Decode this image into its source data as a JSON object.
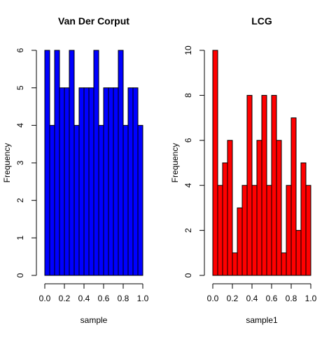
{
  "chart_data": [
    {
      "type": "bar",
      "title": "Van Der Corput",
      "xlabel": "sample",
      "ylabel": "Frequency",
      "xlim": [
        0,
        1
      ],
      "ylim": [
        0,
        6
      ],
      "x_ticks": [
        "0.0",
        "0.2",
        "0.4",
        "0.6",
        "0.8",
        "1.0"
      ],
      "y_ticks": [
        "0",
        "1",
        "2",
        "3",
        "4",
        "5",
        "6"
      ],
      "bin_width": 0.05,
      "bin_starts": [
        0.0,
        0.05,
        0.1,
        0.15,
        0.2,
        0.25,
        0.3,
        0.35,
        0.4,
        0.45,
        0.5,
        0.55,
        0.6,
        0.65,
        0.7,
        0.75,
        0.8,
        0.85,
        0.9,
        0.95
      ],
      "values": [
        6,
        4,
        6,
        5,
        5,
        6,
        4,
        5,
        5,
        5,
        6,
        4,
        5,
        5,
        5,
        6,
        4,
        5,
        5,
        4
      ],
      "bar_color": "#0000ff",
      "grid": false
    },
    {
      "type": "bar",
      "title": "LCG",
      "xlabel": "sample1",
      "ylabel": "Frequency",
      "xlim": [
        0,
        1
      ],
      "ylim": [
        0,
        10
      ],
      "x_ticks": [
        "0.0",
        "0.2",
        "0.4",
        "0.6",
        "0.8",
        "1.0"
      ],
      "y_ticks": [
        "0",
        "2",
        "4",
        "6",
        "8",
        "10"
      ],
      "bin_width": 0.05,
      "bin_starts": [
        0.0,
        0.05,
        0.1,
        0.15,
        0.2,
        0.25,
        0.3,
        0.35,
        0.4,
        0.45,
        0.5,
        0.55,
        0.6,
        0.65,
        0.7,
        0.75,
        0.8,
        0.85,
        0.9,
        0.95
      ],
      "values": [
        10,
        4,
        5,
        6,
        1,
        3,
        4,
        8,
        4,
        6,
        8,
        4,
        8,
        6,
        1,
        4,
        7,
        2,
        5,
        4
      ],
      "bar_color": "#ff0000",
      "grid": false
    }
  ]
}
